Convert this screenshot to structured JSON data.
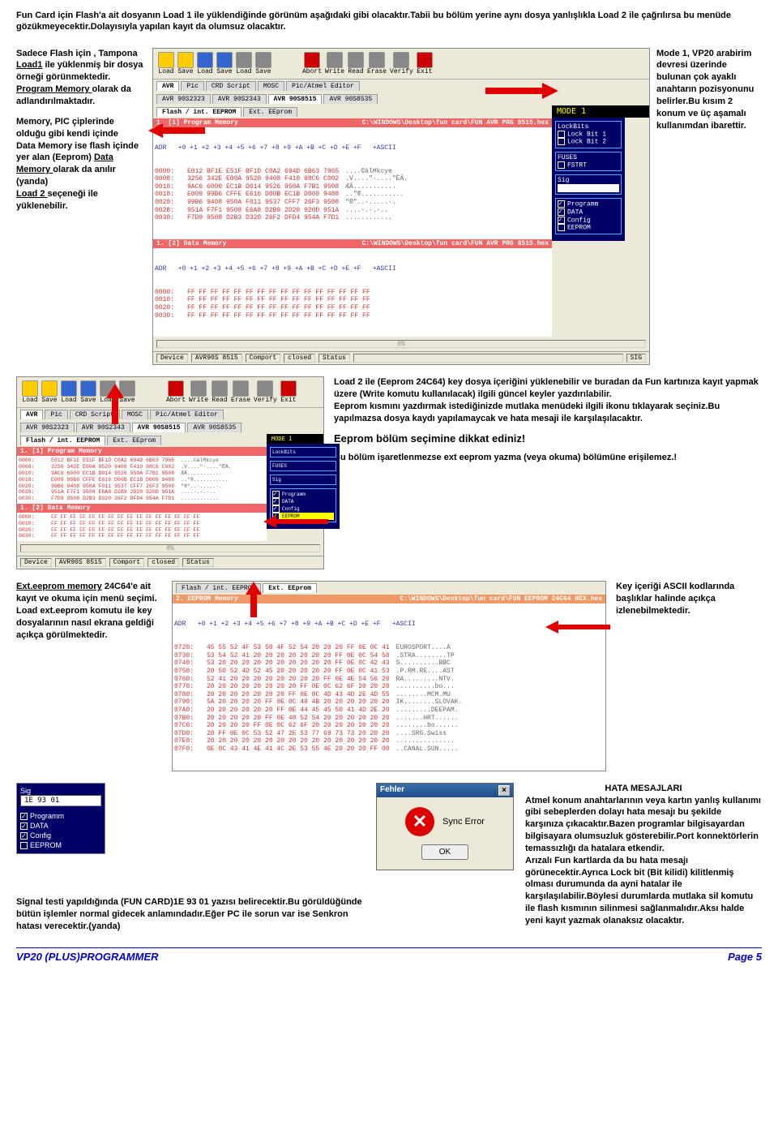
{
  "intro": "Fun Card için Flash'a ait dosyanın Load 1 ile yüklendiğinde görünüm aşağıdaki gibi olacaktır.Tabii bu bölüm yerine aynı dosya yanlışlıkla Load 2 ile çağrılırsa bu menüde gözükmeyecektir.Dolayısıyla yapılan kayıt da olumsuz olacaktır.",
  "left1_a": "Sadece Flash için , Tampona ",
  "left1_b": "Load1",
  "left1_c": " ile yüklenmiş bir dosya örneği görünmektedir.",
  "left1_d": " Program Memory ",
  "left1_e": "olarak da adlandırılmaktadır.",
  "left2_a": "Memory, PIC çiplerinde olduğu gibi kendi içinde",
  "left2_b": " Data Memory ise flash içinde yer alan (Eeprom) ",
  "left2_c": "Data Memory ",
  "left2_d": "olarak da anılır (yanda)",
  "left2_e": "Load 2 ",
  "left2_f": "seçeneği ile yüklenebilir.",
  "right1": "Mode 1, VP20 arabirim devresi üzerinde bulunan çok ayaklı anahtarın pozisyonunu belirler.Bu kısım 2 konum ve üç aşamalı kullanımdan ibarettir.",
  "toolbar": [
    "Load",
    "Save",
    "Load",
    "Save",
    "Load",
    "Save",
    "",
    "Abort",
    "Write",
    "Read",
    "Erase",
    "Verify",
    "Exit"
  ],
  "tabs1": [
    "AVR",
    "Pic",
    "CRD Script",
    "MOSC",
    "Pic/Atmel Editor"
  ],
  "tabs2": [
    "AVR 90S2323",
    "AVR 90S2343",
    "AVR 90S8515",
    "AVR 90S8535"
  ],
  "subtabs": [
    "Flash / int. EEPROM",
    "Ext. EEprom"
  ],
  "mode": "MODE 1",
  "pm_title": "1. [1] Program Memory",
  "pm_path": "C:\\WINDOWS\\Desktop\\fun card\\FUN AVR PRG 8515.hex",
  "dm_title": "1. [2] Data Memory",
  "dm_path": "C:\\WINDOWS\\Desktop\\fun card\\FUN AVR PRG 8515.hex",
  "hexhdr": "ADR   +0 +1 +2 +3 +4 +5 +6 +7 +8 +9 +A +B +C +D +E +F   +ASCII",
  "pm_rows": [
    [
      "0000:",
      "E012 BF1E E51F BF1D C0A2 694D 6B63 7965",
      "....©àlMkcye"
    ],
    [
      "0008:",
      "3256 342E E00A 9520 9408 F410 98C6 C002",
      ".V....\"·....\"ËÄ."
    ],
    [
      "0010:",
      "9AC6 6000 EC1B D014 9526 950A F7B1 9508",
      "ÆÄ..........."
    ],
    [
      "0018:",
      "E009 99B6 CFFE E616 D00B EC1B D009 9488",
      "..\"®..........."
    ],
    [
      "0020:",
      "99B6 9408 950A F011 9537 CFF7 26F3 9508",
      "\"®\"..·.....·."
    ],
    [
      "0028:",
      "951A F7F1 9508 E6A8 D2B9 2D20 920D 951A",
      "....-.-.-.."
    ],
    [
      "0030:",
      "F7D9 9508 D2B3 D320 26F2 DFD4 954A F7D1",
      "............"
    ]
  ],
  "dm_rows": [
    [
      "0000:",
      "FF FF FF FF FF FF FF FF FF FF FF FF FF FF FF FF",
      ""
    ],
    [
      "0010:",
      "FF FF FF FF FF FF FF FF FF FF FF FF FF FF FF FF",
      ""
    ],
    [
      "0020:",
      "FF FF FF FF FF FF FF FF FF FF FF FF FF FF FF FF",
      ""
    ],
    [
      "0030:",
      "FF FF FF FF FF FF FF FF FF FF FF FF FF FF FF FF",
      ""
    ]
  ],
  "side": {
    "lockbits": "LockBits",
    "lb1": "Lock Bit 1",
    "lb2": "Lock Bit 2",
    "fuses": "FUSES",
    "fstrt": "FSTRT",
    "sig": "Sig",
    "programm": "Programm",
    "data": "DATA",
    "config": "Config",
    "eeprom": "EEPROM"
  },
  "progress": "0%",
  "status": {
    "device": "Device",
    "devval": "AVR90S 8515",
    "comport": "Comport",
    "closed": "closed",
    "status": "Status",
    "sig": "SIG"
  },
  "desc2_a": "Load 2 ile (Eeprom 24C64) key dosya içeriğini yüklenebilir ve buradan da  Fun kartınıza kayıt yapmak üzere (Write komutu kullanılacak) ilgili güncel keyler yazdırılabilir.",
  "desc2_b": "Eeprom kısmını yazdırmak istediğinizde mutlaka menüdeki ilgili ikonu tıklayarak seçiniz.Bu yapılmazsa dosya kaydı yapılamaycak ve hata mesaji ile karşılaşılacaktır.",
  "desc2_h": "Eeprom bölüm seçimine dikkat ediniz!",
  "desc2_c": "Bu bölüm işaretlenmezse ext eeprom yazma (veya okuma) bölümüne erişilemez.!",
  "ext_a": "Ext.eeprom memory",
  "ext_b": " 24C64'e ait kayıt ve okuma için menü seçimi. Load ext.eeprom komutu ile key dosyalarının nasıl ekrana geldiği açıkça görülmektedir.",
  "key_right": "Key içeriği ASCII kodlarında başlıklar halinde açıkça izlenebilmektedir.",
  "ee_subtabs": [
    "Flash / int. EEPROM",
    "Ext. EEprom"
  ],
  "ee_title": "2. EEPROM Memory",
  "ee_path": "C:\\WINDOWS\\Desktop\\fun card\\FUN EEPROM 24C64 HEX.hex",
  "ee_rows": [
    [
      "0720:",
      "45 55 52 4F 53 50 4F 52 54 20 20 20 FF 0E 0C 41",
      "EUROSPORT....A"
    ],
    [
      "0730:",
      "53 54 52 41 20 20 20 20 20 20 20 FF 0E 0C 54 50",
      ".STRA........TP"
    ],
    [
      "0740:",
      "53 20 20 20 20 20 20 20 20 20 20 FF 0E 0C 42 43",
      "S..........BBC"
    ],
    [
      "0750:",
      "20 50 52 4D 52 45 20 20 20 20 20 FF 0E 0C 41 53",
      ".P.RM.RE....AST"
    ],
    [
      "0760:",
      "52 41 20 20 20 20 20 20 20 20 FF 0E 4E 54 56 20",
      "RA.........NTV."
    ],
    [
      "0770:",
      "20 20 20 20 20 20 20 20 FF 0E 0C 62 6F 20 20 20",
      "..........bo..."
    ],
    [
      "0780:",
      "20 20 20 20 20 20 20 FF 0E 0C 4D 43 4D 2E 4D 55",
      "........MCM.MU"
    ],
    [
      "0790:",
      "5A 20 20 20 20 FF 0E 0C 49 4B 20 20 20 20 20 20",
      "IK........SLOVAK."
    ],
    [
      "07A0:",
      "20 20 20 20 20 20 FF 0E 44 45 45 50 41 4D 2E 20",
      ".........DEEPAM."
    ],
    [
      "07B0:",
      "20 20 20 20 20 FF 0E 48 52 54 20 20 20 20 20 20",
      ".......HRT......"
    ],
    [
      "07C0:",
      "20 20 20 20 FF 0E 0C 62 6F 20 20 20 20 20 20 20",
      "........bo......"
    ],
    [
      "07D0:",
      "20 FF 0E 0C 53 52 47 2E 53 77 69 73 73 20 20 20",
      "....SRG.Swiss"
    ],
    [
      "07E0:",
      "20 20 20 20 20 20 20 20 20 20 20 20 20 20 20 20",
      "..............."
    ],
    [
      "07F0:",
      "0E 0C 43 41 4E 41 4C 2E 53 55 4E 20 20 20 FF 00",
      "..CANAL.SUN....."
    ]
  ],
  "sig_label": "Sig",
  "sig_val": "1E 93 01",
  "sig_opts": [
    "Programm",
    "DATA",
    "Config",
    "EEPROM"
  ],
  "fehler_title": "Fehler",
  "fehler_msg": "Sync Error",
  "fehler_ok": "OK",
  "hata_h": "HATA MESAJLARI",
  "hata_1": "Atmel konum anahtarlarının veya kartın yanlış kullanımı gibi sebeplerden dolayı  hata mesajı bu şekilde  karşınıza çıkacaktır.Bazen programlar bilgisayardan bilgisayara olumsuzluk gösterebilir.Port konnektörlerin temassızlığı da hatalara etkendir.",
  "hata_2": "Arızalı Fun kartlarda da bu hata mesajı görünecektir.Ayrıca Lock bit (Bit kilidi) kilitlenmiş olması durumunda da ayni hatalar ile karşılaşılabilir.Böylesi durumlarda mutlaka sil komutu ile flash kısmının silinmesi sağlanmalıdır.Aksı halde yeni kayıt yazmak olanaksız olacaktır.",
  "signal": "Signal testi yapıldığında (FUN CARD)1E 93 01 yazısı belirecektir.Bu görüldüğünde bütün işlemler normal gidecek anlamındadır.Eğer PC ile sorun var ise Senkron hatası verecektir.(yanda)",
  "footer_l": "VP20 (PLUS)PROGRAMMER",
  "footer_r": "Page 5",
  "colors": {
    "red": "#e00000",
    "navy": "#003080",
    "orange": "#e96a2c"
  }
}
